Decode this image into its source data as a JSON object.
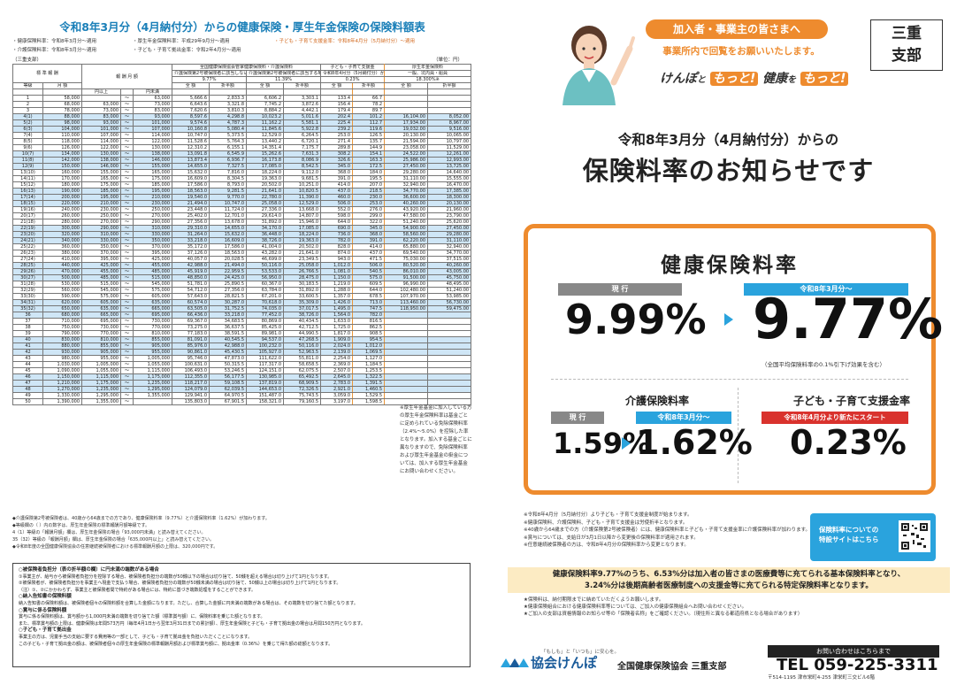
{
  "left": {
    "title": "令和8年3月分（4月納付分）からの健康保険・厚生年金保険の保険料額表",
    "notes": [
      "・健康保険料率：令和8年3月分～適用",
      "・厚生年金保険料率：平成29年9月分～適用",
      "・子ども・子育て支援金率：令和8年4月分（5月納付分）～適用",
      "・介護保険料率：令和8年3月分～適用",
      "・子ども・子育て拠出金率：令和2年4月分～適用"
    ],
    "region": "（三重支部）",
    "unit": "（単位：円）",
    "headers": {
      "hyojun": "標 準 報 酬",
      "toukyu": "等級",
      "getsugaku": "月 額",
      "hoshu": "報 酬 月 額",
      "from": "円以上",
      "to": "円未満",
      "kenpo": "全国健康保険協会管掌健康保険料・介護保険料",
      "h1": "介護保険第2号被保険者に該当しない場合",
      "h2": "介護保険第2号被保険者に該当する場合",
      "r1": "9.77%",
      "r2": "11.39%",
      "kodomo": "子ども・子育て支援金",
      "kodomo_sub": "令和8年4月分（5月納付分）から適用された場合",
      "r3": "0.23%",
      "nenkin": "厚生年金保険料",
      "nenkin_sub": "（厚生年金基金加入員を除く）",
      "nenkin_sub2": "一般、坑内員・船員",
      "r4": "18.300%※",
      "zen": "全 額",
      "sep": "折半額"
    },
    "rows": [
      [
        "1",
        "58,000",
        "",
        "63,000",
        "5,666.6",
        "2,833.3",
        "6,606.2",
        "3,303.1",
        "133.4",
        "66.7",
        "",
        ""
      ],
      [
        "2",
        "68,000",
        "63,000",
        "73,000",
        "6,643.6",
        "3,321.8",
        "7,745.2",
        "3,872.6",
        "156.4",
        "78.2",
        "",
        ""
      ],
      [
        "3",
        "78,000",
        "73,000",
        "83,000",
        "7,620.6",
        "3,810.3",
        "8,884.2",
        "4,442.1",
        "179.4",
        "89.7",
        "",
        ""
      ],
      [
        "4(1)",
        "88,000",
        "83,000",
        "93,000",
        "8,597.6",
        "4,298.8",
        "10,023.2",
        "5,011.6",
        "202.4",
        "101.2",
        "16,104.00",
        "8,052.00"
      ],
      [
        "5(2)",
        "98,000",
        "93,000",
        "101,000",
        "9,574.6",
        "4,787.3",
        "11,162.2",
        "5,581.1",
        "225.4",
        "112.7",
        "17,934.00",
        "8,967.00"
      ],
      [
        "6(3)",
        "104,000",
        "101,000",
        "107,000",
        "10,160.8",
        "5,080.4",
        "11,845.6",
        "5,922.8",
        "239.2",
        "119.6",
        "19,032.00",
        "9,516.00"
      ],
      [
        "7(4)",
        "110,000",
        "107,000",
        "114,000",
        "10,747.0",
        "5,373.5",
        "12,529.0",
        "6,264.5",
        "253.0",
        "126.5",
        "20,130.00",
        "10,065.00"
      ],
      [
        "8(5)",
        "118,000",
        "114,000",
        "122,000",
        "11,528.6",
        "5,764.3",
        "13,440.2",
        "6,720.1",
        "271.4",
        "135.7",
        "21,594.00",
        "10,797.00"
      ],
      [
        "9(6)",
        "126,000",
        "122,000",
        "130,000",
        "12,310.2",
        "6,155.1",
        "14,351.4",
        "7,175.7",
        "289.8",
        "144.9",
        "23,058.00",
        "11,529.00"
      ],
      [
        "10(7)",
        "134,000",
        "130,000",
        "138,000",
        "13,091.8",
        "6,545.9",
        "15,262.6",
        "7,631.3",
        "308.2",
        "154.1",
        "24,522.00",
        "12,261.00"
      ],
      [
        "11(8)",
        "142,000",
        "138,000",
        "146,000",
        "13,873.4",
        "6,936.7",
        "16,173.8",
        "8,086.9",
        "326.6",
        "163.3",
        "25,986.00",
        "12,993.00"
      ],
      [
        "12(9)",
        "150,000",
        "146,000",
        "155,000",
        "14,655.0",
        "7,327.5",
        "17,085.0",
        "8,542.5",
        "345.0",
        "172.5",
        "27,450.00",
        "13,725.00"
      ],
      [
        "13(10)",
        "160,000",
        "155,000",
        "165,000",
        "15,632.0",
        "7,816.0",
        "18,224.0",
        "9,112.0",
        "368.0",
        "184.0",
        "29,280.00",
        "14,640.00"
      ],
      [
        "14(11)",
        "170,000",
        "165,000",
        "175,000",
        "16,609.0",
        "8,304.5",
        "19,363.0",
        "9,681.5",
        "391.0",
        "195.5",
        "31,110.00",
        "15,555.00"
      ],
      [
        "15(12)",
        "180,000",
        "175,000",
        "185,000",
        "17,586.0",
        "8,793.0",
        "20,502.0",
        "10,251.0",
        "414.0",
        "207.0",
        "32,940.00",
        "16,470.00"
      ],
      [
        "16(13)",
        "190,000",
        "185,000",
        "195,000",
        "18,563.0",
        "9,281.5",
        "21,641.0",
        "10,820.5",
        "437.0",
        "218.5",
        "34,770.00",
        "17,385.00"
      ],
      [
        "17(14)",
        "200,000",
        "195,000",
        "210,000",
        "19,540.0",
        "9,770.0",
        "22,780.0",
        "11,390.0",
        "460.0",
        "230.0",
        "36,600.00",
        "18,300.00"
      ],
      [
        "18(15)",
        "220,000",
        "210,000",
        "230,000",
        "21,494.0",
        "10,747.0",
        "25,058.0",
        "12,529.0",
        "506.0",
        "253.0",
        "40,260.00",
        "20,130.00"
      ],
      [
        "19(16)",
        "240,000",
        "230,000",
        "250,000",
        "23,448.0",
        "11,724.0",
        "27,336.0",
        "13,668.0",
        "552.0",
        "276.0",
        "43,920.00",
        "21,960.00"
      ],
      [
        "20(17)",
        "260,000",
        "250,000",
        "270,000",
        "25,402.0",
        "12,701.0",
        "29,614.0",
        "14,807.0",
        "598.0",
        "299.0",
        "47,580.00",
        "23,790.00"
      ],
      [
        "21(18)",
        "280,000",
        "270,000",
        "290,000",
        "27,356.0",
        "13,678.0",
        "31,892.0",
        "15,946.0",
        "644.0",
        "322.0",
        "51,240.00",
        "25,620.00"
      ],
      [
        "22(19)",
        "300,000",
        "290,000",
        "310,000",
        "29,310.0",
        "14,655.0",
        "34,170.0",
        "17,085.0",
        "690.0",
        "345.0",
        "54,900.00",
        "27,450.00"
      ],
      [
        "23(20)",
        "320,000",
        "310,000",
        "330,000",
        "31,264.0",
        "15,632.0",
        "36,448.0",
        "18,224.0",
        "736.0",
        "368.0",
        "58,560.00",
        "29,280.00"
      ],
      [
        "24(21)",
        "340,000",
        "330,000",
        "350,000",
        "33,218.0",
        "16,609.0",
        "38,726.0",
        "19,363.0",
        "782.0",
        "391.0",
        "62,220.00",
        "31,110.00"
      ],
      [
        "25(22)",
        "360,000",
        "350,000",
        "370,000",
        "35,172.0",
        "17,586.0",
        "41,004.0",
        "20,502.0",
        "828.0",
        "414.0",
        "65,880.00",
        "32,940.00"
      ],
      [
        "26(23)",
        "380,000",
        "370,000",
        "395,000",
        "37,126.0",
        "18,563.0",
        "43,282.0",
        "21,641.0",
        "874.0",
        "437.0",
        "69,540.00",
        "34,770.00"
      ],
      [
        "27(24)",
        "410,000",
        "395,000",
        "425,000",
        "40,057.0",
        "20,028.5",
        "46,699.0",
        "23,349.5",
        "943.0",
        "471.5",
        "75,030.00",
        "37,515.00"
      ],
      [
        "28(25)",
        "440,000",
        "425,000",
        "455,000",
        "42,988.0",
        "21,494.0",
        "50,116.0",
        "25,058.0",
        "1,012.0",
        "506.0",
        "80,520.00",
        "40,260.00"
      ],
      [
        "29(26)",
        "470,000",
        "455,000",
        "485,000",
        "45,919.0",
        "22,959.5",
        "53,533.0",
        "26,766.5",
        "1,081.0",
        "540.5",
        "86,010.00",
        "43,005.00"
      ],
      [
        "30(27)",
        "500,000",
        "485,000",
        "515,000",
        "48,850.0",
        "24,425.0",
        "56,950.0",
        "28,475.0",
        "1,150.0",
        "575.0",
        "91,500.00",
        "45,750.00"
      ],
      [
        "31(28)",
        "530,000",
        "515,000",
        "545,000",
        "51,781.0",
        "25,890.5",
        "60,367.0",
        "30,183.5",
        "1,219.0",
        "609.5",
        "96,990.00",
        "48,495.00"
      ],
      [
        "32(29)",
        "560,000",
        "545,000",
        "575,000",
        "54,712.0",
        "27,356.0",
        "63,784.0",
        "31,892.0",
        "1,288.0",
        "644.0",
        "102,480.00",
        "51,240.00"
      ],
      [
        "33(30)",
        "590,000",
        "575,000",
        "605,000",
        "57,643.0",
        "28,821.5",
        "67,201.0",
        "33,600.5",
        "1,357.0",
        "678.5",
        "107,970.00",
        "53,985.00"
      ],
      [
        "34(31)",
        "620,000",
        "605,000",
        "635,000",
        "60,574.0",
        "30,287.0",
        "70,618.0",
        "35,309.0",
        "1,426.0",
        "713.0",
        "113,460.00",
        "56,730.00"
      ],
      [
        "35(32)",
        "650,000",
        "635,000",
        "665,000",
        "63,505.0",
        "31,752.5",
        "74,035.0",
        "37,017.5",
        "1,495.0",
        "747.5",
        "118,950.00",
        "59,475.00"
      ],
      [
        "36",
        "680,000",
        "665,000",
        "695,000",
        "66,436.0",
        "33,218.0",
        "77,452.0",
        "38,726.0",
        "1,564.0",
        "782.0",
        "",
        ""
      ],
      [
        "37",
        "710,000",
        "695,000",
        "730,000",
        "69,367.0",
        "34,683.5",
        "80,869.0",
        "40,434.5",
        "1,633.0",
        "816.5",
        "",
        ""
      ],
      [
        "38",
        "750,000",
        "730,000",
        "770,000",
        "73,275.0",
        "36,637.5",
        "85,425.0",
        "42,712.5",
        "1,725.0",
        "862.5",
        "",
        ""
      ],
      [
        "39",
        "790,000",
        "770,000",
        "810,000",
        "77,183.0",
        "38,591.5",
        "89,981.0",
        "44,990.5",
        "1,817.0",
        "908.5",
        "",
        ""
      ],
      [
        "40",
        "830,000",
        "810,000",
        "855,000",
        "81,091.0",
        "40,545.5",
        "94,537.0",
        "47,268.5",
        "1,909.0",
        "954.5",
        "",
        ""
      ],
      [
        "41",
        "880,000",
        "855,000",
        "905,000",
        "85,976.0",
        "42,988.0",
        "100,232.0",
        "50,116.0",
        "2,024.0",
        "1,012.0",
        "",
        ""
      ],
      [
        "42",
        "930,000",
        "905,000",
        "955,000",
        "90,861.0",
        "45,430.5",
        "105,927.0",
        "52,963.5",
        "2,139.0",
        "1,069.5",
        "",
        ""
      ],
      [
        "43",
        "980,000",
        "955,000",
        "1,005,000",
        "95,746.0",
        "47,873.0",
        "111,622.0",
        "55,811.0",
        "2,254.0",
        "1,127.0",
        "",
        ""
      ],
      [
        "44",
        "1,030,000",
        "1,005,000",
        "1,055,000",
        "100,631.0",
        "50,315.5",
        "117,317.0",
        "58,658.5",
        "2,369.0",
        "1,184.5",
        "",
        ""
      ],
      [
        "45",
        "1,090,000",
        "1,055,000",
        "1,115,000",
        "106,493.0",
        "53,246.5",
        "124,151.0",
        "62,075.5",
        "2,507.0",
        "1,253.5",
        "",
        ""
      ],
      [
        "46",
        "1,150,000",
        "1,115,000",
        "1,175,000",
        "112,355.0",
        "56,177.5",
        "130,985.0",
        "65,492.5",
        "2,645.0",
        "1,322.5",
        "",
        ""
      ],
      [
        "47",
        "1,210,000",
        "1,175,000",
        "1,235,000",
        "118,217.0",
        "59,108.5",
        "137,819.0",
        "68,909.5",
        "2,783.0",
        "1,391.5",
        "",
        ""
      ],
      [
        "48",
        "1,270,000",
        "1,235,000",
        "1,295,000",
        "124,079.0",
        "62,039.5",
        "144,653.0",
        "72,326.5",
        "2,921.0",
        "1,460.5",
        "",
        ""
      ],
      [
        "49",
        "1,330,000",
        "1,295,000",
        "1,355,000",
        "129,941.0",
        "64,970.5",
        "151,487.0",
        "75,743.5",
        "3,059.0",
        "1,529.5",
        "",
        ""
      ],
      [
        "50",
        "1,390,000",
        "1,355,000",
        "",
        "135,803.0",
        "67,901.5",
        "158,321.0",
        "79,160.5",
        "3,197.0",
        "1,598.5",
        "",
        ""
      ]
    ],
    "footnotes": [
      "◆介護保険第2号被保険者は、40歳から64歳までの方であり、健康保険料率（9.77%）と介護保険料率（1.62%）が加わります。",
      "◆等級欄の（ ）内の数字は、厚生年金保険の標準報酬月額等級です。",
      "4（1）等級の「報酬月額」欄は、厚生年金保険の場合「93,000円未満」と読み替えてください。",
      "35（32）等級の「報酬月額」欄は、厚生年金保険の場合「635,000円以上」と読み替えてください。",
      "◆令和8年度の全国健康保険協会の任意継続被保険者における標準報酬月額の上限は、320,000円です。"
    ],
    "box": [
      "○被保険者負担分（表の折半額の欄）に円未満の端数がある場合",
      "①事業主が、給与から被保険者負担分を控除する場合、被保険者負担分の端数が50銭以下の場合は切り捨て、50銭を超える場合は切り上げて1円となります。",
      "②被保険者が、被保険者負担分を事業主へ現金で支払う場合、被保険者負担分の端数が50銭未満の場合は切り捨て、50銭以上の場合は切り上げて1円となります。",
      "（注）①、②にかかわらず、事業主と被保険者間で特約がある場合には、特約に基づき端数処理をすることができます。",
      "○納入告知書の保険料額",
      "納入告知書の保険料額は、被保険者個々の保険料額を合算した金額になります。ただし、合算した金額に円未満の端数がある場合は、その端数を切り捨てた額となります。",
      "○賞与に係る保険料額",
      "賞与に係る保険料額は、賞与額から1,000円未満の端数を切り捨てた額（標準賞与額）に、保険料率を乗じた額となります。",
      "また、標準賞与額の上限は、健康保険は年間573万円（毎年4月1日から翌年3月31日までの累計額）、厚生年金保険と子ども・子育て拠出金の場合は月間150万円となります。",
      "○子ども・子育て拠出金",
      "事業主の方は、児童手当の支給に要する費用等の一部として、子ども・子育て拠出金を負担いただくことになります。",
      "この子ども・子育て拠出金の額は、被保険者個々の厚生年金保険の標準報酬月額および標準賞与額に、拠出金率（0.36%）を乗じて得た額の総額となります。"
    ],
    "sidenote": "※厚生年金基金に加入している方の厚生年金保険料率は基金ごとに定められている免除保険料率（2.4%～5.0%）を控除した率となります。加入する基金ごとに異なりますので、免除保険料率および厚生年金基金の掛金については、加入する厚生年金基金にお問い合わせください。"
  },
  "right": {
    "banner1": "加入者・事業主の皆さまへ",
    "banner2": "事業所内で回覧をお願いいたします。",
    "branch_line1": "三重",
    "branch_line2": "支部",
    "slogan_a": "けんぽ",
    "slogan_b": "と",
    "slogan_c": "もっと!",
    "slogan_d": "健康",
    "slogan_e": "を",
    "slogan_f": "もっと!",
    "heading1": "令和8年3月分（4月納付分）からの",
    "heading2": "保険料率のお知らせです",
    "health_title": "健康保険料率",
    "current_label": "現 行",
    "new_label": "令和8年3月分～",
    "health_old": "9.99%",
    "health_new": "9.77%",
    "health_note": "（全国平均保険料率の0.1%引下げ効果を含む）",
    "kaigo_title": "介護保険料率",
    "kaigo_current_label": "現 行",
    "kaigo_new_label": "令和8年3月分～",
    "kaigo_old": "1.59%",
    "kaigo_new": "1.62%",
    "kodomo_title": "子ども・子育て支援金率",
    "kodomo_label": "令和8年4月分より新たにスタート",
    "kodomo_rate": "0.23%",
    "notes": [
      "※令和8年4月分（5月納付分）より子ども・子育て支援金制度が始まります。",
      "※健康保険料、介護保険料、子ども・子育て支援金は労使折半となります。",
      "※40歳から64歳までの方（介護保険第2号被保険者）には、健康保険料率と子ども・子育て支援金率に介護保険料率が加わります。",
      "※賞与については、支給日が3月1日以降から変更後の保険料率が適用されます。",
      "※任意継続被保険者の方は、令和8年4月分の保険料率から変更となります。"
    ],
    "qr_text1": "保険料率についての",
    "qr_text2": "特設サイトはこちら",
    "yellow1": "健康保険料率9.77%のうち、6.53%分は加入者の皆さまの医療費等に充てられる基本保険料率となり、",
    "yellow2": "3.24%分は後期高齢者医療制度への支援金等に充てられる特定保険料率となります。",
    "bnotes": [
      "★保険料は、納付期限までに納めていただくようお願いします。",
      "★健康保険組合における健康保険料率等については、ご加入の健康保険組合へお問い合わせください。",
      "★ご加入の支部は資格情報のお知らせ等の「保険者名称」をご確認ください。（現住所と異なる都道府県となる場合があります）"
    ],
    "tagline": "「もしも」と「いつも」に安心を。",
    "logo": "協会けんぽ",
    "org": "全国健康保険協会 三重支部",
    "contact_label": "お問い合わせはこちらまで",
    "tel": "TEL 059-225-3311",
    "addr": "〒514-1195 津市栄町4-255 津栄町三交ビル6階"
  }
}
